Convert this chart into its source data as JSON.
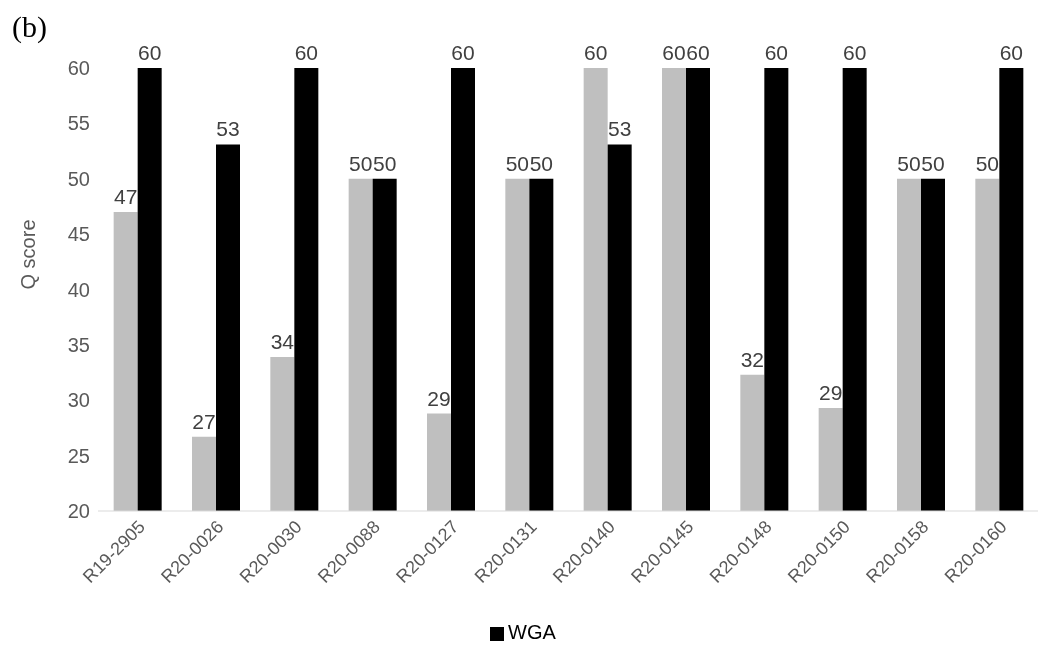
{
  "chart_data": {
    "type": "bar",
    "ylabel": "Q score",
    "annotations": [
      "(b)"
    ],
    "categories": [
      "R19-2905",
      "R20-0026",
      "R20-0030",
      "R20-0088",
      "R20-0127",
      "R20-0131",
      "R20-0140",
      "R20-0145",
      "R20-0148",
      "R20-0150",
      "R20-0158",
      "R20-0160"
    ],
    "series": [
      {
        "color": "#bfbfbf",
        "values": [
          47,
          26.7,
          33.9,
          50,
          28.8,
          50,
          60,
          60,
          32.3,
          29.3,
          50,
          50
        ],
        "value_labels": [
          "47",
          "27",
          "34",
          "50",
          "29",
          "50",
          "60",
          "60",
          "32",
          "29",
          "50",
          "50"
        ]
      },
      {
        "name": "WGA",
        "color": "#000000",
        "values": [
          60,
          53.1,
          60,
          50,
          60,
          50,
          53.1,
          60,
          60,
          60,
          50,
          60
        ],
        "value_labels": [
          "60",
          "53",
          "60",
          "50",
          "60",
          "50",
          "53",
          "60",
          "60",
          "60",
          "50",
          "60"
        ]
      }
    ],
    "ylim": [
      20,
      60
    ],
    "yticks": [
      20,
      25,
      30,
      35,
      40,
      45,
      50,
      55,
      60
    ],
    "grid": false,
    "legend": "bottom"
  }
}
